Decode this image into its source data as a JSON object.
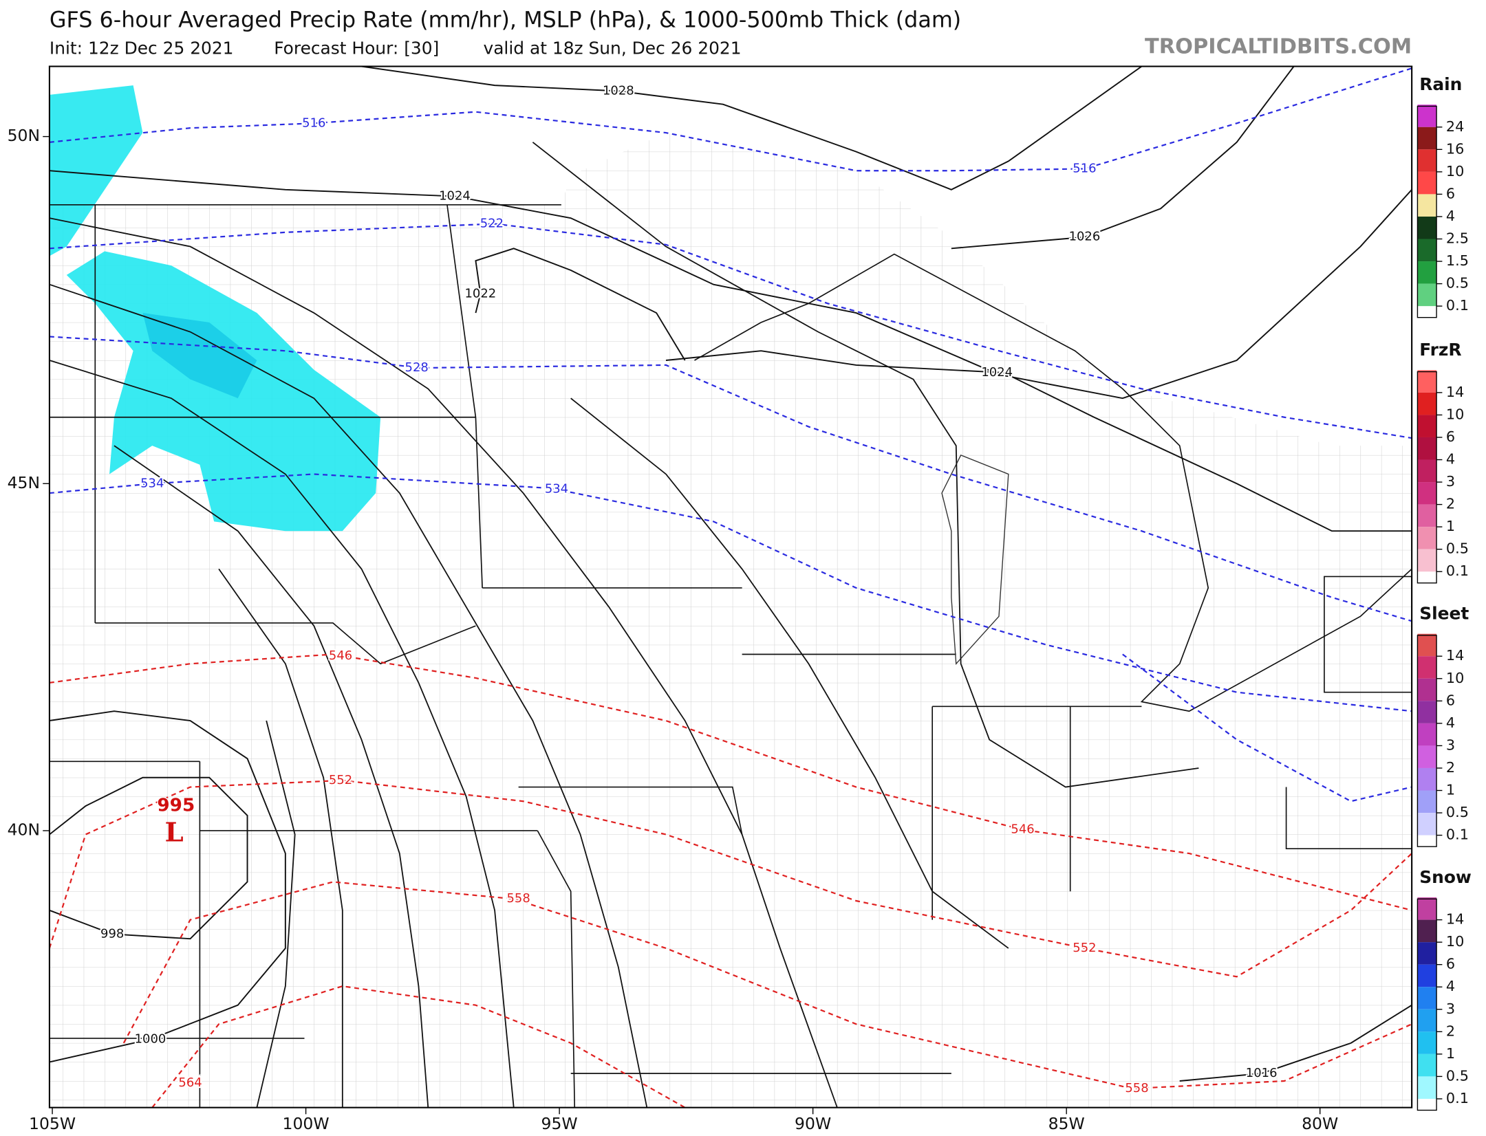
{
  "header": {
    "title": "GFS 6-hour Averaged Precip Rate (mm/hr), MSLP (hPa), & 1000-500mb Thick (dam)",
    "init": "Init: 12z Dec 25 2021",
    "forecast_hour": "Forecast Hour: [30]",
    "valid": "valid at 18z Sun, Dec 26 2021",
    "site": "TROPICALTIDBITS.COM"
  },
  "map": {
    "lon_ticks": [
      {
        "value": -105,
        "label": "105W"
      },
      {
        "value": -100,
        "label": "100W"
      },
      {
        "value": -95,
        "label": "95W"
      },
      {
        "value": -90,
        "label": "90W"
      },
      {
        "value": -85,
        "label": "85W"
      },
      {
        "value": -80,
        "label": "80W"
      }
    ],
    "lat_ticks": [
      {
        "value": 50,
        "label": "50N"
      },
      {
        "value": 45,
        "label": "45N"
      },
      {
        "value": 40,
        "label": "40N"
      }
    ],
    "isobar_labels": [
      1028,
      1024,
      1022,
      1026,
      1024,
      998,
      1000,
      1016
    ],
    "thickness_labels": [
      516,
      516,
      522,
      528,
      534,
      534,
      546,
      552,
      546,
      552,
      558,
      558,
      564
    ],
    "low": {
      "pressure": 995,
      "symbol": "L"
    }
  },
  "legends": [
    {
      "title": "Rain",
      "levels": [
        {
          "value": 24,
          "color": "#cc33cc"
        },
        {
          "value": 16,
          "color": "#8b1a1a"
        },
        {
          "value": 10,
          "color": "#e03030"
        },
        {
          "value": 6,
          "color": "#ff4848"
        },
        {
          "value": 4,
          "color": "#f5e6a0"
        },
        {
          "value": 2.5,
          "color": "#123a18"
        },
        {
          "value": 1.5,
          "color": "#1a6a2a"
        },
        {
          "value": 0.5,
          "color": "#22a040"
        },
        {
          "value": 0.1,
          "color": "#60d080"
        }
      ]
    },
    {
      "title": "FrzR",
      "levels": [
        {
          "value": 14,
          "color": "#ff6060"
        },
        {
          "value": 10,
          "color": "#e02020"
        },
        {
          "value": 6,
          "color": "#c01030"
        },
        {
          "value": 4,
          "color": "#b01040"
        },
        {
          "value": 3,
          "color": "#c02060"
        },
        {
          "value": 2,
          "color": "#d03080"
        },
        {
          "value": 1,
          "color": "#e060a0"
        },
        {
          "value": 0.5,
          "color": "#f090b0"
        },
        {
          "value": 0.1,
          "color": "#f8c0d0"
        }
      ]
    },
    {
      "title": "Sleet",
      "levels": [
        {
          "value": 14,
          "color": "#e05050"
        },
        {
          "value": 10,
          "color": "#d03070"
        },
        {
          "value": 6,
          "color": "#b03090"
        },
        {
          "value": 4,
          "color": "#9030a0"
        },
        {
          "value": 3,
          "color": "#c040c0"
        },
        {
          "value": 2,
          "color": "#d060e0"
        },
        {
          "value": 1,
          "color": "#b080f0"
        },
        {
          "value": 0.5,
          "color": "#a0a0f8"
        },
        {
          "value": 0.1,
          "color": "#d0d0ff"
        }
      ]
    },
    {
      "title": "Snow",
      "levels": [
        {
          "value": 14,
          "color": "#c040a0"
        },
        {
          "value": 10,
          "color": "#502050"
        },
        {
          "value": 6,
          "color": "#2020a0"
        },
        {
          "value": 4,
          "color": "#2040e0"
        },
        {
          "value": 3,
          "color": "#2080f0"
        },
        {
          "value": 2,
          "color": "#20a0f0"
        },
        {
          "value": 1,
          "color": "#20c0f0"
        },
        {
          "value": 0.5,
          "color": "#40e0f0"
        },
        {
          "value": 0.1,
          "color": "#a0f8ff"
        }
      ]
    }
  ]
}
